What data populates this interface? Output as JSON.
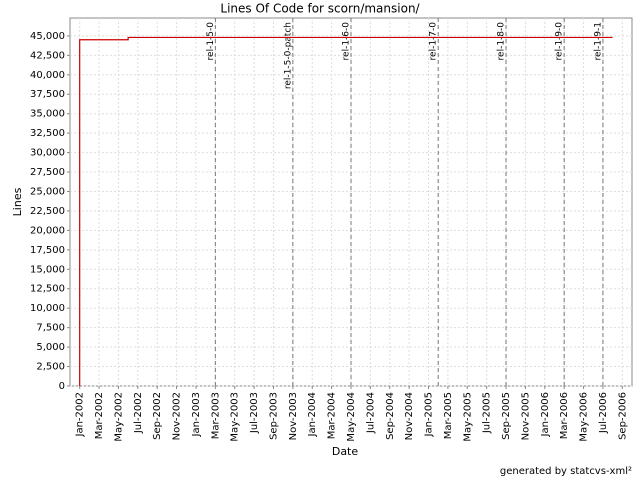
{
  "chart_data": {
    "type": "line",
    "title": "Lines Of Code for scorn/mansion/",
    "xlabel": "Date",
    "ylabel": "Lines",
    "credit": "generated by statcvs-xml²",
    "grid": true,
    "series": [
      {
        "name": "Lines",
        "color": "#cc0000",
        "x": [
          "2002-01",
          "2002-01",
          "2002-06",
          "2002-06",
          "2006-08"
        ],
        "values": [
          0,
          44500,
          44500,
          44800,
          44800
        ]
      }
    ],
    "xlim": [
      "2001-12",
      "2006-10"
    ],
    "xticks": [
      {
        "value": "2002-01",
        "label": "Jan-2002"
      },
      {
        "value": "2002-03",
        "label": "Mar-2002"
      },
      {
        "value": "2002-05",
        "label": "May-2002"
      },
      {
        "value": "2002-07",
        "label": "Jul-2002"
      },
      {
        "value": "2002-09",
        "label": "Sep-2002"
      },
      {
        "value": "2002-11",
        "label": "Nov-2002"
      },
      {
        "value": "2003-01",
        "label": "Jan-2003"
      },
      {
        "value": "2003-03",
        "label": "Mar-2003"
      },
      {
        "value": "2003-05",
        "label": "May-2003"
      },
      {
        "value": "2003-07",
        "label": "Jul-2003"
      },
      {
        "value": "2003-09",
        "label": "Sep-2003"
      },
      {
        "value": "2003-11",
        "label": "Nov-2003"
      },
      {
        "value": "2004-01",
        "label": "Jan-2004"
      },
      {
        "value": "2004-03",
        "label": "Mar-2004"
      },
      {
        "value": "2004-05",
        "label": "May-2004"
      },
      {
        "value": "2004-07",
        "label": "Jul-2004"
      },
      {
        "value": "2004-09",
        "label": "Sep-2004"
      },
      {
        "value": "2004-11",
        "label": "Nov-2004"
      },
      {
        "value": "2005-01",
        "label": "Jan-2005"
      },
      {
        "value": "2005-03",
        "label": "Mar-2005"
      },
      {
        "value": "2005-05",
        "label": "May-2005"
      },
      {
        "value": "2005-07",
        "label": "Jul-2005"
      },
      {
        "value": "2005-09",
        "label": "Sep-2005"
      },
      {
        "value": "2005-11",
        "label": "Nov-2005"
      },
      {
        "value": "2006-01",
        "label": "Jan-2006"
      },
      {
        "value": "2006-03",
        "label": "Mar-2006"
      },
      {
        "value": "2006-05",
        "label": "May-2006"
      },
      {
        "value": "2006-07",
        "label": "Jul-2006"
      },
      {
        "value": "2006-09",
        "label": "Sep-2006"
      }
    ],
    "ylim": [
      0,
      47300
    ],
    "yticks": [
      0,
      {
        "value": 2500,
        "label": "2,500"
      },
      {
        "value": 5000,
        "label": "5,000"
      },
      {
        "value": 7500,
        "label": "7,500"
      },
      {
        "value": 10000,
        "label": "10,000"
      },
      {
        "value": 12500,
        "label": "12,500"
      },
      {
        "value": 15000,
        "label": "15,000"
      },
      {
        "value": 17500,
        "label": "17,500"
      },
      {
        "value": 20000,
        "label": "20,000"
      },
      {
        "value": 22500,
        "label": "22,500"
      },
      {
        "value": 25000,
        "label": "25,000"
      },
      {
        "value": 27500,
        "label": "27,500"
      },
      {
        "value": 30000,
        "label": "30,000"
      },
      {
        "value": 32500,
        "label": "32,500"
      },
      {
        "value": 35000,
        "label": "35,000"
      },
      {
        "value": 37500,
        "label": "37,500"
      },
      {
        "value": 40000,
        "label": "40,000"
      },
      {
        "value": 42500,
        "label": "42,500"
      },
      {
        "value": 45000,
        "label": "45,000"
      }
    ],
    "markers": [
      {
        "label": "rel-1-5-0",
        "x": "2003-03"
      },
      {
        "label": "rel-1-5-0-patch",
        "x": "2003-11"
      },
      {
        "label": "rel-1-6-0",
        "x": "2004-05"
      },
      {
        "label": "rel-1-7-0",
        "x": "2005-02"
      },
      {
        "label": "rel-1-8-0",
        "x": "2005-09"
      },
      {
        "label": "rel-1-9-0",
        "x": "2006-03"
      },
      {
        "label": "rel-1-9-1",
        "x": "2006-07"
      }
    ]
  }
}
